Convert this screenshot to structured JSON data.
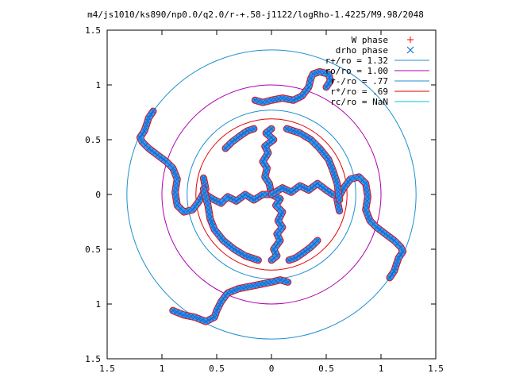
{
  "chart_data": {
    "type": "scatter",
    "title": "m4/js1010/ks890/np0.0/q2.0/r-+.58-j1122/logRho-1.4225/M9.98/2048",
    "xlim": [
      -1.5,
      1.5
    ],
    "ylim": [
      -1.5,
      1.5
    ],
    "x_ticks": [
      "1.5",
      "1",
      "0.5",
      "0",
      "0.5",
      "1",
      "1.5"
    ],
    "y_ticks": [
      "1.5",
      "1",
      "0.5",
      "0",
      "0.5",
      "1",
      "1.5"
    ],
    "grid": false,
    "legend_position": "top-right",
    "series": [
      {
        "name": "W phase",
        "kind": "points",
        "marker": "+",
        "color": "#ff0000"
      },
      {
        "name": "drho phase",
        "kind": "points",
        "marker": "x",
        "color": "#0066cc"
      },
      {
        "name": "r+/ro = 1.32",
        "kind": "circle",
        "r": 1.32,
        "color": "#1f8fd0"
      },
      {
        "name": "ro/ro = 1.00",
        "kind": "circle",
        "r": 1.0,
        "color": "#b000b0"
      },
      {
        "name": "r-/ro = .77",
        "kind": "circle",
        "r": 0.77,
        "color": "#1f8fd0"
      },
      {
        "name": "r*/ro = .69",
        "kind": "circle",
        "r": 0.69,
        "color": "#e00000"
      },
      {
        "name": "rc/ro = NaN",
        "kind": "circle",
        "r": null,
        "color": "#00cccc"
      }
    ],
    "arms": [
      [
        [
          0.0,
          0.6
        ],
        [
          -0.05,
          0.56
        ],
        [
          0.02,
          0.5
        ],
        [
          -0.06,
          0.44
        ],
        [
          -0.03,
          0.38
        ],
        [
          -0.08,
          0.3
        ],
        [
          -0.04,
          0.24
        ],
        [
          -0.06,
          0.16
        ],
        [
          -0.02,
          0.1
        ],
        [
          0.0,
          0.0
        ]
      ],
      [
        [
          0.0,
          0.0
        ],
        [
          0.08,
          -0.04
        ],
        [
          0.04,
          -0.1
        ],
        [
          0.1,
          -0.16
        ],
        [
          0.06,
          -0.24
        ],
        [
          0.1,
          -0.3
        ],
        [
          0.05,
          -0.36
        ],
        [
          0.08,
          -0.42
        ],
        [
          0.02,
          -0.5
        ],
        [
          0.05,
          -0.56
        ],
        [
          0.0,
          -0.6
        ]
      ],
      [
        [
          0.0,
          0.0
        ],
        [
          -0.08,
          0.0
        ],
        [
          -0.16,
          -0.05
        ],
        [
          -0.24,
          0.0
        ],
        [
          -0.32,
          -0.06
        ],
        [
          -0.4,
          -0.02
        ],
        [
          -0.46,
          -0.08
        ],
        [
          -0.54,
          -0.04
        ],
        [
          -0.6,
          0.0
        ]
      ],
      [
        [
          0.0,
          0.0
        ],
        [
          0.1,
          0.06
        ],
        [
          0.18,
          0.02
        ],
        [
          0.26,
          0.08
        ],
        [
          0.34,
          0.04
        ],
        [
          0.42,
          0.1
        ],
        [
          0.5,
          0.04
        ],
        [
          0.56,
          0.0
        ],
        [
          0.6,
          -0.02
        ]
      ],
      [
        [
          0.62,
          -0.15
        ],
        [
          0.6,
          -0.05
        ],
        [
          0.66,
          0.06
        ],
        [
          0.72,
          0.14
        ],
        [
          0.8,
          0.16
        ],
        [
          0.86,
          0.1
        ],
        [
          0.88,
          -0.02
        ],
        [
          0.86,
          -0.14
        ],
        [
          0.9,
          -0.24
        ],
        [
          0.96,
          -0.3
        ],
        [
          1.04,
          -0.36
        ],
        [
          1.12,
          -0.42
        ],
        [
          1.18,
          -0.48
        ],
        [
          1.2,
          -0.52
        ],
        [
          1.16,
          -0.58
        ],
        [
          1.14,
          -0.64
        ],
        [
          1.12,
          -0.7
        ],
        [
          1.08,
          -0.76
        ]
      ],
      [
        [
          -0.62,
          0.15
        ],
        [
          -0.6,
          0.05
        ],
        [
          -0.66,
          -0.06
        ],
        [
          -0.72,
          -0.14
        ],
        [
          -0.8,
          -0.16
        ],
        [
          -0.86,
          -0.1
        ],
        [
          -0.88,
          0.02
        ],
        [
          -0.86,
          0.14
        ],
        [
          -0.9,
          0.24
        ],
        [
          -0.96,
          0.3
        ],
        [
          -1.04,
          0.36
        ],
        [
          -1.12,
          0.42
        ],
        [
          -1.18,
          0.48
        ],
        [
          -1.2,
          0.52
        ],
        [
          -1.16,
          0.58
        ],
        [
          -1.14,
          0.64
        ],
        [
          -1.12,
          0.7
        ],
        [
          -1.08,
          0.76
        ]
      ],
      [
        [
          -0.15,
          0.86
        ],
        [
          -0.08,
          0.84
        ],
        [
          0.0,
          0.86
        ],
        [
          0.1,
          0.88
        ],
        [
          0.2,
          0.86
        ],
        [
          0.28,
          0.9
        ],
        [
          0.34,
          0.98
        ],
        [
          0.36,
          1.06
        ],
        [
          0.38,
          1.1
        ],
        [
          0.44,
          1.12
        ],
        [
          0.52,
          1.1
        ],
        [
          0.54,
          1.04
        ],
        [
          0.5,
          0.98
        ]
      ],
      [
        [
          0.15,
          -0.8
        ],
        [
          0.08,
          -0.78
        ],
        [
          0.0,
          -0.8
        ],
        [
          -0.1,
          -0.82
        ],
        [
          -0.2,
          -0.84
        ],
        [
          -0.3,
          -0.86
        ],
        [
          -0.4,
          -0.9
        ],
        [
          -0.46,
          -0.98
        ],
        [
          -0.5,
          -1.06
        ],
        [
          -0.52,
          -1.12
        ],
        [
          -0.6,
          -1.16
        ],
        [
          -0.7,
          -1.12
        ],
        [
          -0.8,
          -1.1
        ],
        [
          -0.9,
          -1.06
        ]
      ],
      [
        [
          -0.62,
          0.05
        ],
        [
          -0.58,
          -0.1
        ],
        [
          -0.56,
          -0.22
        ],
        [
          -0.52,
          -0.32
        ],
        [
          -0.44,
          -0.42
        ],
        [
          -0.34,
          -0.5
        ],
        [
          -0.24,
          -0.56
        ],
        [
          -0.12,
          -0.6
        ]
      ],
      [
        [
          0.42,
          -0.42
        ],
        [
          0.36,
          -0.48
        ],
        [
          0.28,
          -0.54
        ],
        [
          0.22,
          -0.58
        ],
        [
          0.16,
          -0.6
        ]
      ],
      [
        [
          0.62,
          -0.05
        ],
        [
          0.6,
          0.1
        ],
        [
          0.56,
          0.22
        ],
        [
          0.52,
          0.32
        ],
        [
          0.44,
          0.42
        ],
        [
          0.36,
          0.5
        ],
        [
          0.26,
          0.56
        ],
        [
          0.14,
          0.6
        ]
      ],
      [
        [
          -0.42,
          0.42
        ],
        [
          -0.36,
          0.48
        ],
        [
          -0.28,
          0.54
        ],
        [
          -0.22,
          0.58
        ],
        [
          -0.16,
          0.6
        ]
      ]
    ]
  }
}
